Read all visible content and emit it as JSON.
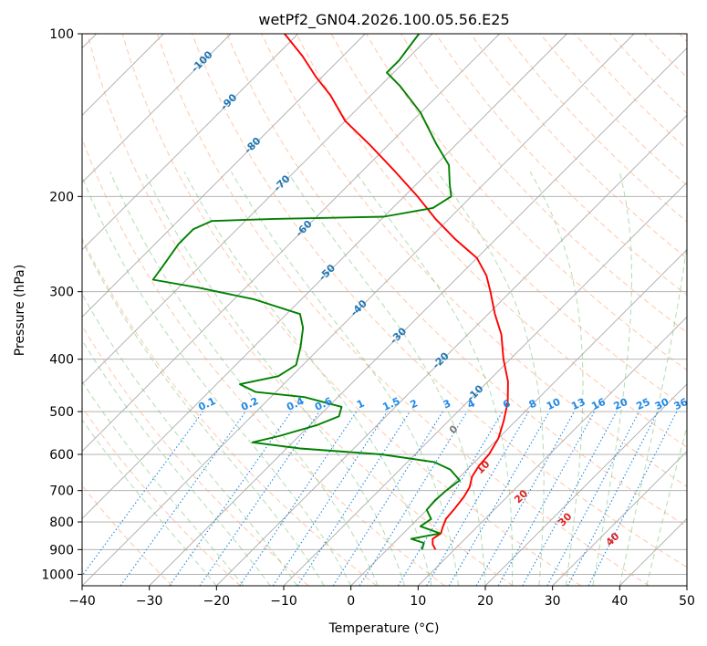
{
  "chart_data": {
    "type": "line",
    "title": "wetPf2_GN04.2026.100.05.56.E25",
    "xlabel": "Temperature (°C)",
    "ylabel": "Pressure (hPa)",
    "xlim": [
      -40,
      50
    ],
    "ylim": [
      1050,
      100
    ],
    "y_scale": "log",
    "grid": true,
    "x_ticks": [
      -40,
      -30,
      -20,
      -10,
      0,
      10,
      20,
      30,
      40,
      50
    ],
    "y_ticks": [
      100,
      200,
      300,
      400,
      500,
      600,
      700,
      800,
      900,
      1000
    ],
    "skew": true,
    "colors": {
      "temperature": "#ff0000",
      "dewpoint": "#008000",
      "isotherm": "#aaaaaa",
      "dry_adiabat": "#ff9966",
      "moist_adiabat": "#66bb66",
      "mixing_ratio": "#1e88e5",
      "isotherm_label": "#1f77b4",
      "moist_label": "#dd2222"
    },
    "series": [
      {
        "points": [
          {
            "p": 900,
            "t": 7.2
          },
          {
            "p": 880,
            "t": 6.0
          },
          {
            "p": 860,
            "t": 5.2
          },
          {
            "p": 840,
            "t": 5.6
          },
          {
            "p": 820,
            "t": 5.0
          },
          {
            "p": 790,
            "t": 4.2
          },
          {
            "p": 760,
            "t": 4.0
          },
          {
            "p": 720,
            "t": 3.6
          },
          {
            "p": 690,
            "t": 3.0
          },
          {
            "p": 660,
            "t": 1.8
          },
          {
            "p": 630,
            "t": 1.2
          },
          {
            "p": 600,
            "t": 1.0
          },
          {
            "p": 560,
            "t": 0.0
          },
          {
            "p": 520,
            "t": -1.8
          },
          {
            "p": 480,
            "t": -4.0
          },
          {
            "p": 440,
            "t": -7.0
          },
          {
            "p": 400,
            "t": -11.0
          },
          {
            "p": 360,
            "t": -15.0
          },
          {
            "p": 330,
            "t": -19.0
          },
          {
            "p": 300,
            "t": -23.0
          },
          {
            "p": 280,
            "t": -26.0
          },
          {
            "p": 260,
            "t": -30.0
          },
          {
            "p": 240,
            "t": -36.0
          },
          {
            "p": 220,
            "t": -42.0
          },
          {
            "p": 200,
            "t": -48.0
          },
          {
            "p": 180,
            "t": -55.0
          },
          {
            "p": 160,
            "t": -63.0
          },
          {
            "p": 145,
            "t": -70.0
          },
          {
            "p": 130,
            "t": -76.0
          },
          {
            "p": 120,
            "t": -81.0
          },
          {
            "p": 110,
            "t": -86.0
          },
          {
            "p": 100,
            "t": -92.0
          }
        ]
      },
      {
        "points": [
          {
            "p": 900,
            "t": 5.2
          },
          {
            "p": 875,
            "t": 4.5
          },
          {
            "p": 860,
            "t": 2.0
          },
          {
            "p": 840,
            "t": 5.5
          },
          {
            "p": 815,
            "t": 1.5
          },
          {
            "p": 790,
            "t": 2.0
          },
          {
            "p": 760,
            "t": 0.0
          },
          {
            "p": 730,
            "t": -0.2
          },
          {
            "p": 700,
            "t": 0.0
          },
          {
            "p": 670,
            "t": 0.5
          },
          {
            "p": 640,
            "t": -2.5
          },
          {
            "p": 620,
            "t": -6.0
          },
          {
            "p": 600,
            "t": -15.0
          },
          {
            "p": 585,
            "t": -28.0
          },
          {
            "p": 570,
            "t": -36.0
          },
          {
            "p": 555,
            "t": -33.0
          },
          {
            "p": 530,
            "t": -29.0
          },
          {
            "p": 510,
            "t": -27.0
          },
          {
            "p": 490,
            "t": -28.0
          },
          {
            "p": 470,
            "t": -35.0
          },
          {
            "p": 460,
            "t": -43.0
          },
          {
            "p": 445,
            "t": -46.5
          },
          {
            "p": 430,
            "t": -42.0
          },
          {
            "p": 410,
            "t": -41.0
          },
          {
            "p": 380,
            "t": -43.0
          },
          {
            "p": 350,
            "t": -45.5
          },
          {
            "p": 330,
            "t": -48.0
          },
          {
            "p": 310,
            "t": -57.0
          },
          {
            "p": 295,
            "t": -67.0
          },
          {
            "p": 285,
            "t": -75.0
          },
          {
            "p": 270,
            "t": -75.5
          },
          {
            "p": 245,
            "t": -76.5
          },
          {
            "p": 230,
            "t": -76.5
          },
          {
            "p": 222,
            "t": -75.0
          },
          {
            "p": 220,
            "t": -66.0
          },
          {
            "p": 218,
            "t": -50.0
          },
          {
            "p": 210,
            "t": -44.0
          },
          {
            "p": 200,
            "t": -43.0
          },
          {
            "p": 190,
            "t": -45.0
          },
          {
            "p": 175,
            "t": -48.0
          },
          {
            "p": 160,
            "t": -53.0
          },
          {
            "p": 140,
            "t": -60.0
          },
          {
            "p": 125,
            "t": -67.0
          },
          {
            "p": 118,
            "t": -71.0
          },
          {
            "p": 112,
            "t": -71.0
          },
          {
            "p": 106,
            "t": -71.5
          },
          {
            "p": 100,
            "t": -72.0
          }
        ]
      }
    ],
    "isotherm_labels": [
      "-100",
      "-90",
      "-80",
      "-70",
      "-60",
      "-50",
      "-40",
      "-30",
      "-20",
      "-10"
    ],
    "mixing_ratio_labels": [
      "0.1",
      "0.2",
      "0.4",
      "0.6",
      "1",
      "1.5",
      "2",
      "3",
      "4",
      "6",
      "8",
      "10",
      "13",
      "16",
      "20",
      "25",
      "30",
      "36"
    ],
    "moist_adiabat_labels": [
      "0",
      "10",
      "20",
      "30",
      "40"
    ]
  }
}
